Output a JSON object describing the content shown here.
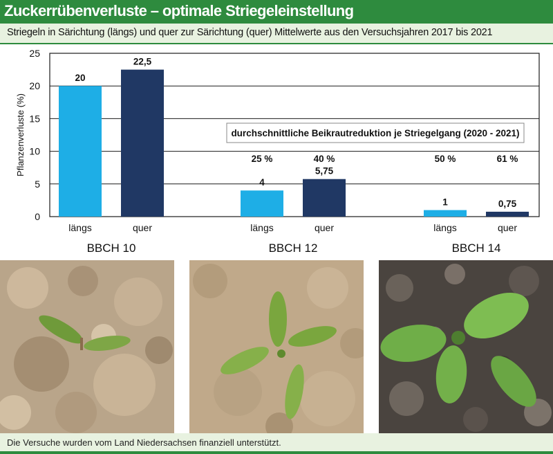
{
  "header": {
    "title": "Zuckerrübenverluste – optimale Striegeleinstellung",
    "subtitle": "Striegeln in Särichtung (längs) und quer zur Särichtung (quer) Mittelwerte aus den Versuchsjahren 2017 bis 2021"
  },
  "chart_data": {
    "type": "bar",
    "ylabel": "Pflanzenverluste (%)",
    "ylim": [
      0,
      25
    ],
    "yticks": [
      0,
      5,
      10,
      15,
      20,
      25
    ],
    "grid": true,
    "groups": [
      {
        "label": "BBCH 10",
        "bars": [
          {
            "category": "längs",
            "value": 20,
            "value_label": "20"
          },
          {
            "category": "quer",
            "value": 22.5,
            "value_label": "22,5"
          }
        ]
      },
      {
        "label": "BBCH 12",
        "bars": [
          {
            "category": "längs",
            "value": 4,
            "value_label": "4",
            "reduction_label": "25 %"
          },
          {
            "category": "quer",
            "value": 5.75,
            "value_label": "5,75",
            "reduction_label": "40 %"
          }
        ]
      },
      {
        "label": "BBCH 14",
        "bars": [
          {
            "category": "längs",
            "value": 1,
            "value_label": "1",
            "reduction_label": "50 %"
          },
          {
            "category": "quer",
            "value": 0.75,
            "value_label": "0,75",
            "reduction_label": "61 %"
          }
        ]
      }
    ],
    "annotation": "durchschnittliche Beikrautreduktion je Striegelgang (2020 - 2021)",
    "colors": {
      "längs": "#1eaee6",
      "quer": "#203864"
    }
  },
  "photos": [
    {
      "subject": "sugar-beet-seedling-bbch10"
    },
    {
      "subject": "sugar-beet-seedling-bbch12"
    },
    {
      "subject": "sugar-beet-seedling-bbch14"
    }
  ],
  "footer": {
    "text": "Die Versuche wurden vom Land Niedersachsen finanziell unterstützt."
  }
}
